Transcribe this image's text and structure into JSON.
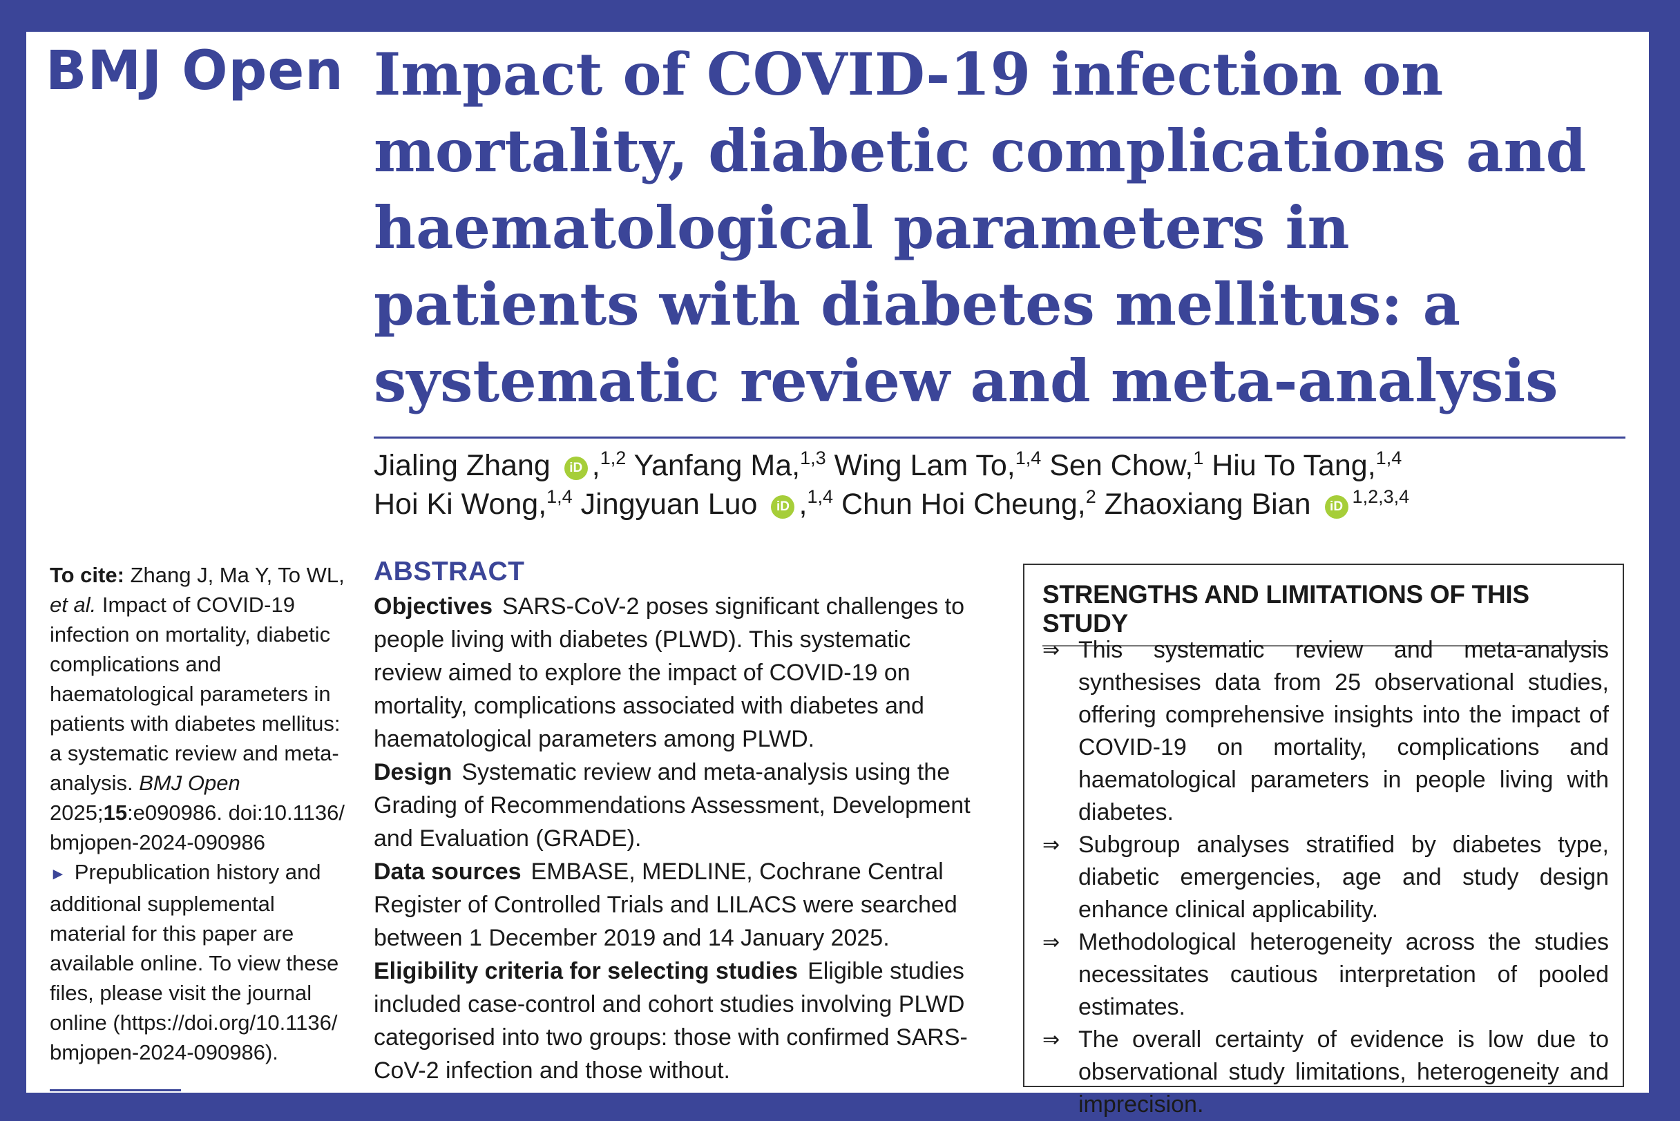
{
  "journal": {
    "name": "BMJ Open"
  },
  "article": {
    "title": "Impact of COVID-19 infection on mortality, diabetic complications and haematological parameters in patients with diabetes mellitus: a systematic review and meta-analysis"
  },
  "authors": [
    {
      "name": "Jialing Zhang",
      "orcid": true,
      "sep": ",",
      "aff": "1,2"
    },
    {
      "name": "Yanfang Ma",
      "orcid": false,
      "sep": ",",
      "aff": "1,3"
    },
    {
      "name": "Wing Lam To",
      "orcid": false,
      "sep": ",",
      "aff": "1,4"
    },
    {
      "name": "Sen Chow",
      "orcid": false,
      "sep": ",",
      "aff": "1"
    },
    {
      "name": "Hiu To Tang",
      "orcid": false,
      "sep": ",",
      "aff": "1,4"
    },
    {
      "name": "Hoi Ki Wong",
      "orcid": false,
      "sep": ",",
      "aff": "1,4"
    },
    {
      "name": "Jingyuan Luo",
      "orcid": true,
      "sep": ",",
      "aff": "1,4"
    },
    {
      "name": "Chun Hoi Cheung",
      "orcid": false,
      "sep": ",",
      "aff": "2"
    },
    {
      "name": "Zhaoxiang Bian",
      "orcid": true,
      "sep": "",
      "aff": "1,2,3,4"
    }
  ],
  "orcid_label": "iD",
  "cite": {
    "label": "To cite:",
    "text1": "Zhang J, Ma Y, To WL,",
    "etal": "et al.",
    "text2": "Impact of COVID-19 infection on mortality, diabetic complications and haematological parameters in patients with diabetes mellitus: a systematic review and meta-analysis.",
    "journal": "BMJ Open",
    "year": "2025;",
    "volume": "15",
    "rest": ":e090986. doi:10.1136/ bmjopen-2024-090986"
  },
  "prepub": {
    "marker": "►",
    "text": "Prepublication history and additional supplemental material for this paper are available online. To view these files, please visit the journal online (https://doi.org/10.1136/ bmjopen-2024-090986)."
  },
  "abstract": {
    "heading": "ABSTRACT",
    "sections": [
      {
        "label": "Objectives",
        "text": "SARS-CoV-2 poses significant challenges to people living with diabetes (PLWD). This systematic review aimed to explore the impact of COVID-19 on mortality, complications associated with diabetes and haematological parameters among PLWD."
      },
      {
        "label": "Design",
        "text": "Systematic review and meta-analysis using the Grading of Recommendations Assessment, Development and Evaluation (GRADE)."
      },
      {
        "label": "Data sources",
        "text": "EMBASE, MEDLINE, Cochrane Central Register of Controlled Trials and LILACS were searched between 1 December 2019 and 14 January 2025."
      },
      {
        "label": "Eligibility criteria for selecting studies",
        "text": "Eligible studies included case-control and cohort studies involving PLWD categorised into two groups: those with confirmed SARS-CoV-2 infection and those without."
      }
    ]
  },
  "strengths": {
    "heading": "STRENGTHS AND LIMITATIONS OF THIS STUDY",
    "arrow": "⇒",
    "items": [
      "This systematic review and meta-analysis synthesises data from 25 observational studies, offering comprehensive insights into the impact of COVID-19 on mortality, complications and haematological parameters in people living with diabetes.",
      "Subgroup analyses stratified by diabetes type, diabetic emergencies, age and study design enhance clinical applicability.",
      "Methodological heterogeneity across the studies necessitates cautious interpretation of pooled estimates.",
      "The overall certainty of evidence is low due to observational study limitations, heterogeneity and imprecision."
    ]
  },
  "colors": {
    "brand": "#3b4598",
    "orcid": "#a6ce39",
    "text": "#1a1a1a"
  }
}
